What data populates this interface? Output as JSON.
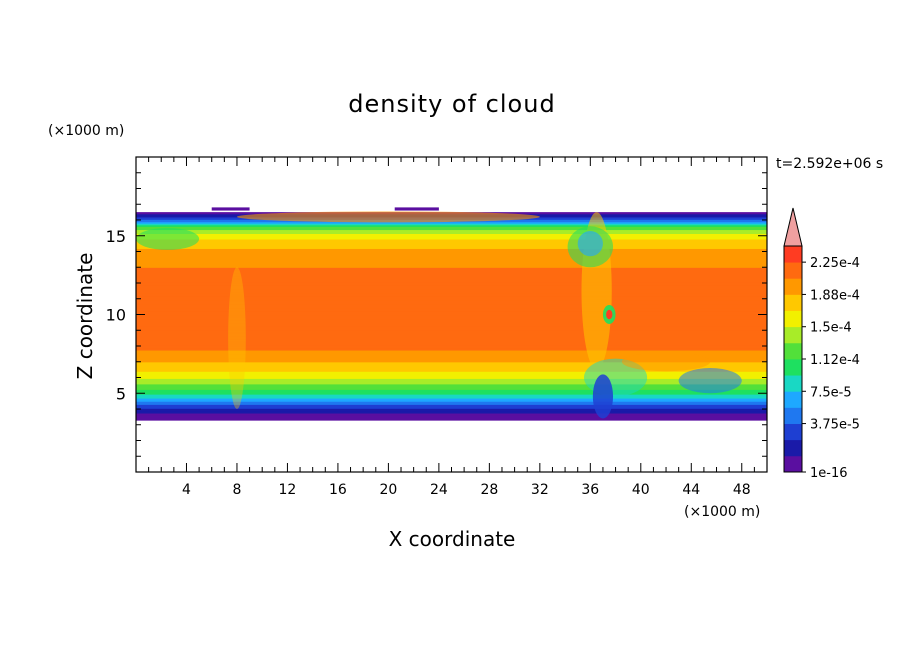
{
  "chart_data": {
    "type": "heatmap",
    "title": "density of cloud",
    "time_label": "t=2.592e+06 s",
    "xlabel": "X coordinate",
    "ylabel": "Z coordinate",
    "x_unit": "(×1000 m)",
    "y_unit": "(×1000 m)",
    "xlim": [
      0,
      50
    ],
    "ylim": [
      0,
      20
    ],
    "x_ticks": [
      4,
      8,
      12,
      16,
      20,
      24,
      28,
      32,
      36,
      40,
      44,
      48
    ],
    "y_ticks": [
      5,
      10,
      15
    ],
    "cloud_base_km": 3.3,
    "cloud_top_km": 16.5,
    "colorbar": {
      "labels": [
        "2.25e-4",
        "1.88e-4",
        "1.5e-4",
        "1.12e-4",
        "7.5e-5",
        "3.75e-5",
        "1e-16"
      ],
      "levels": [
        1e-16,
        1.875e-05,
        3.75e-05,
        5.625e-05,
        7.5e-05,
        9.375e-05,
        0.0001125,
        0.00013125,
        0.00015,
        0.00016875,
        0.0001875,
        0.00020625,
        0.000225,
        0.00024375
      ],
      "colors": [
        "#5a0fa0",
        "#1a1aa8",
        "#1e3fd2",
        "#1f78f0",
        "#1ea8ff",
        "#19d8c4",
        "#1ee060",
        "#52e03a",
        "#a8ec28",
        "#f2f000",
        "#ffc800",
        "#ff9800",
        "#ff6a10",
        "#ff3c22"
      ],
      "overflow_color": "#f0a0a0"
    },
    "density_profile": {
      "z_km": [
        3.3,
        3.8,
        4.3,
        4.7,
        5.1,
        5.5,
        5.9,
        6.3,
        6.8,
        7.3,
        8.0,
        9.0,
        10.0,
        11.0,
        12.0,
        13.0,
        14.0,
        14.6,
        15.1,
        15.6,
        16.0,
        16.5
      ],
      "value": [
        1e-16,
        2e-05,
        5.8e-05,
        9.5e-05,
        0.000122,
        0.000146,
        0.000166,
        0.000185,
        0.0002,
        0.000215,
        0.00023,
        0.000238,
        0.00024,
        0.000238,
        0.000234,
        0.000225,
        0.000212,
        0.000195,
        0.000175,
        0.00013,
        6e-05,
        1e-05
      ]
    }
  }
}
